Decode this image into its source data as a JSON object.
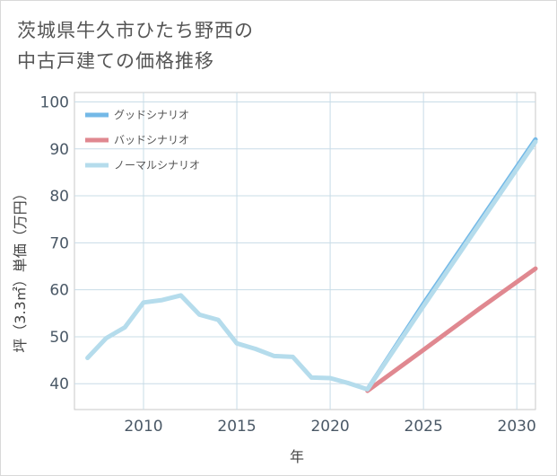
{
  "header": {
    "title_line1": "茨城県牛久市ひたち野西の",
    "title_line2": "中古戸建ての価格推移"
  },
  "chart_data": {
    "type": "line",
    "title": "茨城県牛久市ひたち野西の中古戸建ての価格推移",
    "xlabel": "年",
    "ylabel": "坪（3.3㎡）単価（万円）",
    "xlim": [
      2006.3,
      2031
    ],
    "ylim": [
      34.5,
      102
    ],
    "xticks": [
      2010,
      2015,
      2020,
      2025,
      2030
    ],
    "yticks": [
      40,
      50,
      60,
      70,
      80,
      90,
      100
    ],
    "grid": true,
    "legend_position": "top-left",
    "series": [
      {
        "name": "グッドシナリオ",
        "color": "#74b9e7",
        "x": [
          2022,
          2025,
          2031
        ],
        "y": [
          38.8,
          57.0,
          92.0
        ]
      },
      {
        "name": "バッドシナリオ",
        "color": "#e08890",
        "x": [
          2022,
          2025,
          2028,
          2031
        ],
        "y": [
          38.5,
          47.2,
          56.0,
          64.5
        ]
      },
      {
        "name": "ノーマルシナリオ",
        "color": "#b5dcec",
        "x": [
          2007,
          2008,
          2009,
          2010,
          2011,
          2012,
          2013,
          2014,
          2015,
          2016,
          2017,
          2018,
          2019,
          2020,
          2021,
          2022,
          2025,
          2031
        ],
        "y": [
          45.5,
          49.7,
          52.0,
          57.3,
          57.8,
          58.8,
          54.7,
          53.6,
          48.6,
          47.4,
          45.9,
          45.7,
          41.3,
          41.2,
          40.1,
          38.8,
          56.5,
          91.5
        ]
      }
    ]
  }
}
